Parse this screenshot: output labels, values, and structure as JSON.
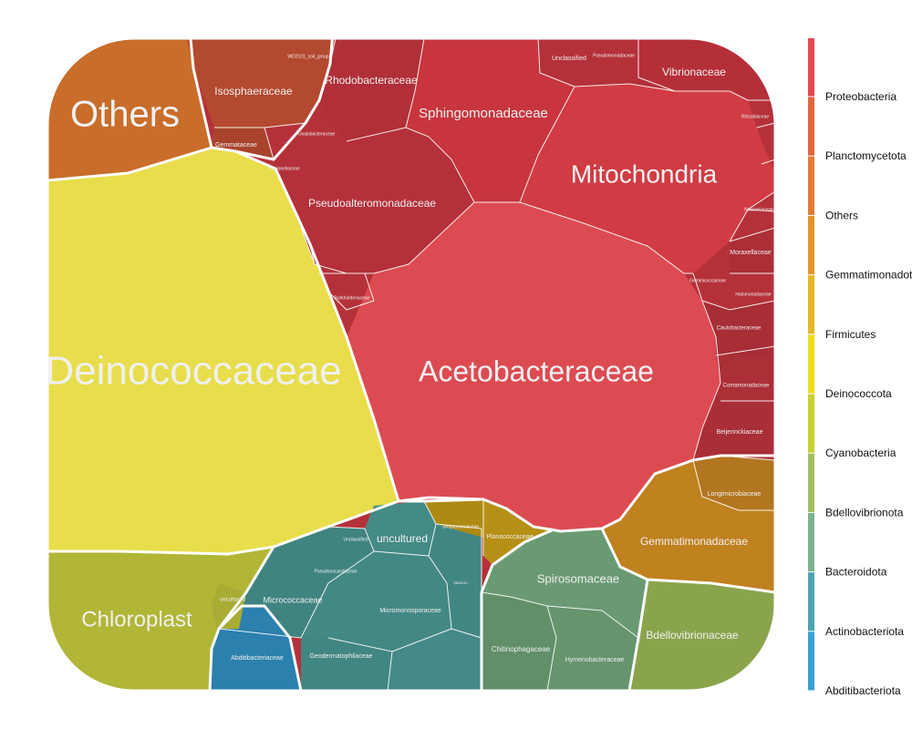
{
  "chart_data": {
    "type": "voronoi-treemap",
    "title": "",
    "legend": {
      "placement": "right",
      "entries": [
        {
          "name": "Proteobacteria",
          "color": "#e5494f"
        },
        {
          "name": "Planctomycetota",
          "color": "#e3653e"
        },
        {
          "name": "Others",
          "color": "#e47c33"
        },
        {
          "name": "Gemmatimonadota",
          "color": "#e3942a"
        },
        {
          "name": "Firmicutes",
          "color": "#e4b723"
        },
        {
          "name": "Deinococcota",
          "color": "#ebdc1c"
        },
        {
          "name": "Cyanobacteria",
          "color": "#c9d12e"
        },
        {
          "name": "Bdellovibrionota",
          "color": "#a3bf62"
        },
        {
          "name": "Bacteroidota",
          "color": "#79b28e"
        },
        {
          "name": "Actinobacteriota",
          "color": "#4ca4b2"
        },
        {
          "name": "Abditibacteriota",
          "color": "#3a9fd8"
        }
      ]
    },
    "cells": [
      {
        "label": "Deinococcaceae",
        "phylum": "Deinococcota",
        "color": "#e8dd4a"
      },
      {
        "label": "Acetobacteraceae",
        "phylum": "Proteobacteria",
        "color": "#dd4b52"
      },
      {
        "label": "Mitochondria",
        "phylum": "Proteobacteria",
        "color": "#d13c44"
      },
      {
        "label": "Others",
        "phylum": "Others",
        "color": "#c96d2a"
      },
      {
        "label": "Chloroplast",
        "phylum": "Cyanobacteria",
        "color": "#b1b636"
      },
      {
        "label": "Sphingomonadaceae",
        "phylum": "Proteobacteria",
        "color": "#c8353e"
      },
      {
        "label": "Pseudoalteromonadaceae",
        "phylum": "Proteobacteria",
        "color": "#b4303a"
      },
      {
        "label": "Rhodobacteraceae",
        "phylum": "Proteobacteria",
        "color": "#b02f38"
      },
      {
        "label": "Vibrionaceae",
        "phylum": "Proteobacteria",
        "color": "#b52f39"
      },
      {
        "label": "Isosphaeraceae",
        "phylum": "Planctomycetota",
        "color": "#b3492f"
      },
      {
        "label": "Gemmataceae",
        "phylum": "Planctomycetota",
        "color": "#a8432c"
      },
      {
        "label": "Gemmatimonadaceae",
        "phylum": "Gemmatimonadota",
        "color": "#c0811f"
      },
      {
        "label": "Longimicrobiaceae",
        "phylum": "Gemmatimonadota",
        "color": "#b27620"
      },
      {
        "label": "Bdellovibrionaceae",
        "phylum": "Bdellovibrionota",
        "color": "#8aa44c"
      },
      {
        "label": "Spirosomaceae",
        "phylum": "Bacteroidota",
        "color": "#6a9a73"
      },
      {
        "label": "Chitinophagaceae",
        "phylum": "Bacteroidota",
        "color": "#618f68"
      },
      {
        "label": "Hymenobacteraceae",
        "phylum": "Bacteroidota",
        "color": "#65946d"
      },
      {
        "label": "uncultured",
        "phylum": "Actinobacteriota",
        "color": "#448a86"
      },
      {
        "label": "Micrococcaceae",
        "phylum": "Actinobacteriota",
        "color": "#3f8481"
      },
      {
        "label": "Micromonosporaceae",
        "phylum": "Actinobacteriota",
        "color": "#438884"
      },
      {
        "label": "Geodermatophilaceae",
        "phylum": "Actinobacteriota",
        "color": "#418682"
      },
      {
        "label": "Abditibacteriaceae",
        "phylum": "Abditibacteriota",
        "color": "#2b80ad"
      },
      {
        "label": "Planococcaceae",
        "phylum": "Firmicutes",
        "color": "#b68f16"
      },
      {
        "label": "Streptococcaceae",
        "phylum": "Firmicutes",
        "color": "#ae8914"
      },
      {
        "label": "uncultured",
        "phylum": "Cyanobacteria",
        "color": "#a8ac34"
      },
      {
        "label": "Unclassified",
        "phylum": "Actinobacteriota",
        "color": "#45898a"
      },
      {
        "label": "Pseudonocardiaceae",
        "phylum": "Actinobacteriota",
        "color": "#428684"
      },
      {
        "label": "Beijerinckiaceae",
        "phylum": "Proteobacteria",
        "color": "#a92e37"
      },
      {
        "label": "Comamonadaceae",
        "phylum": "Proteobacteria",
        "color": "#ab2f37"
      },
      {
        "label": "Caulobacteraceae",
        "phylum": "Proteobacteria",
        "color": "#a72d36"
      },
      {
        "label": "Moraxellaceae",
        "phylum": "Proteobacteria",
        "color": "#ac2f37"
      },
      {
        "label": "Halomonadaceae",
        "phylum": "Proteobacteria",
        "color": "#a62e36"
      },
      {
        "label": "Geminicoccaceae",
        "phylum": "Proteobacteria",
        "color": "#a92e37"
      },
      {
        "label": "Neisseriaceae",
        "phylum": "Proteobacteria",
        "color": "#aa2e37"
      },
      {
        "label": "Rhizobiaceae",
        "phylum": "Proteobacteria",
        "color": "#a82e36"
      },
      {
        "label": "Unclassified",
        "phylum": "Proteobacteria",
        "color": "#ab2f38"
      },
      {
        "label": "Pseudomonadaceae",
        "phylum": "Proteobacteria",
        "color": "#ad2f38"
      },
      {
        "label": "Burkholderiaceae",
        "phylum": "Proteobacteria",
        "color": "#a92e37"
      },
      {
        "label": "Oxalobacteraceae",
        "phylum": "Proteobacteria",
        "color": "#a72d36"
      },
      {
        "label": "Legionellaceae",
        "phylum": "Proteobacteria",
        "color": "#a52d35"
      },
      {
        "label": "SM2D12",
        "phylum": "Proteobacteria",
        "color": "#a72d36"
      },
      {
        "label": "WD2101_soil_group",
        "phylum": "Planctomycetota",
        "color": "#a7442b"
      }
    ]
  }
}
